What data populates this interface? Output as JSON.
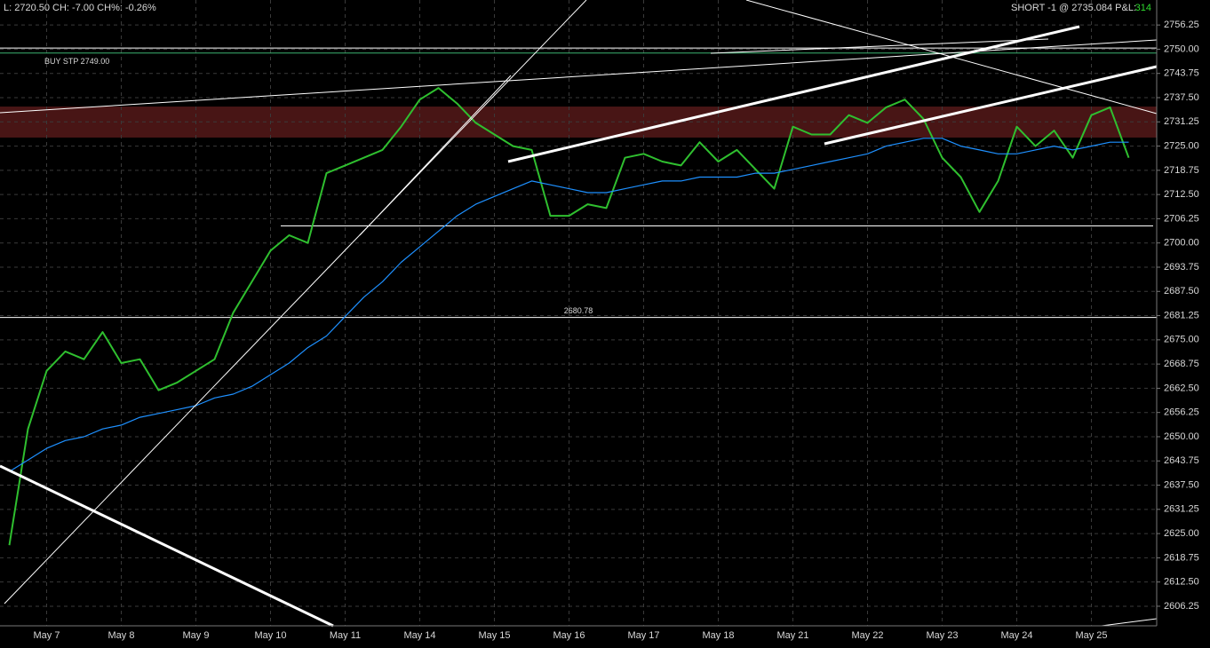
{
  "chart_data": {
    "type": "line",
    "status": "L: 2720.50 CH: -7.00 CH%: -0.26%",
    "position": "SHORT -1 @ 2735.084 P&L:",
    "pnl": 314,
    "categories": [
      null,
      null,
      "May 7",
      null,
      null,
      null,
      "May 8",
      null,
      null,
      null,
      "May 9",
      null,
      null,
      null,
      "May 10",
      null,
      null,
      null,
      "May 11",
      null,
      null,
      null,
      "May 14",
      null,
      null,
      null,
      "May 15",
      null,
      null,
      null,
      "May 16",
      null,
      null,
      null,
      "May 17",
      null,
      null,
      null,
      "May 18",
      null,
      null,
      null,
      "May 21",
      null,
      null,
      null,
      "May 22",
      null,
      null,
      null,
      "May 23",
      null,
      null,
      null,
      "May 24",
      null,
      null,
      null,
      "May 25",
      null,
      null,
      null
    ],
    "series": [
      {
        "color": "#2fbf2f",
        "values": [
          2622,
          2652,
          2667,
          2672,
          2670,
          2677,
          2669,
          2670,
          2662,
          2664,
          2667,
          2670,
          2682,
          2690,
          2698,
          2702,
          2700,
          2718,
          2720,
          2722,
          2724,
          2730,
          2737,
          2740,
          2736,
          2731,
          2728,
          2725,
          2724,
          2707,
          2707,
          2710,
          2709,
          2722,
          2723,
          2721,
          2720,
          2726,
          2721,
          2724,
          2719,
          2714,
          2730,
          2728,
          2728,
          2733,
          2731,
          2735,
          2737,
          2732,
          2722,
          2717,
          2708,
          2716,
          2730,
          2725,
          2729,
          2722,
          2733,
          2735,
          2722,
          null
        ]
      },
      {
        "color": "#1e90ff",
        "values": [
          2641,
          2644,
          2647,
          2649,
          2650,
          2652,
          2653,
          2655,
          2656,
          2657,
          2658,
          2660,
          2661,
          2663,
          2666,
          2669,
          2673,
          2676,
          2681,
          2686,
          2690,
          2695,
          2699,
          2703,
          2707,
          2710,
          2712,
          2714,
          2716,
          2715,
          2714,
          2713,
          2713,
          2714,
          2715,
          2716,
          2716,
          2717,
          2717,
          2717,
          2718,
          2718,
          2719,
          2720,
          2721,
          2722,
          2723,
          2725,
          2726,
          2727,
          2727,
          2725,
          2724,
          2723,
          2723,
          2724,
          2725,
          2724,
          2725,
          2726,
          2726,
          null
        ]
      }
    ],
    "levels": [
      {
        "value": 2749,
        "label": "BUY STP 2749.00",
        "color": "#3cb371"
      },
      {
        "value": 2750.3,
        "color": "#ffffff"
      },
      {
        "value": 2704.4,
        "color": "#ffffff"
      },
      {
        "value": 2680.78,
        "label": "2680.78",
        "color": "#ffffff"
      }
    ],
    "zone": [
      2727.2,
      2735.2
    ],
    "zone_color": "#5a1a1a",
    "ylim": [
      2601.2,
      2762.7
    ],
    "yticks": [
      2756.25,
      {
        "value": 2750,
        "label": "2750.00"
      },
      2743.75,
      {
        "value": 2737.5,
        "label": "2737.50"
      },
      2731.25,
      {
        "value": 2725,
        "label": "2725.00"
      },
      2718.75,
      {
        "value": 2712.5,
        "label": "2712.50"
      },
      2706.25,
      {
        "value": 2700,
        "label": "2700.00"
      },
      2693.75,
      {
        "value": 2687.5,
        "label": "2687.50"
      },
      2681.25,
      {
        "value": 2675,
        "label": "2675.00"
      },
      2668.75,
      {
        "value": 2662.5,
        "label": "2662.50"
      },
      2656.25,
      {
        "value": 2650,
        "label": "2650.00"
      },
      2643.75,
      {
        "value": 2637.5,
        "label": "2637.50"
      },
      2631.25,
      {
        "value": 2625,
        "label": "2625.00"
      },
      2618.75,
      {
        "value": 2612.5,
        "label": "2612.50"
      },
      2606.25
    ],
    "grid": true
  }
}
